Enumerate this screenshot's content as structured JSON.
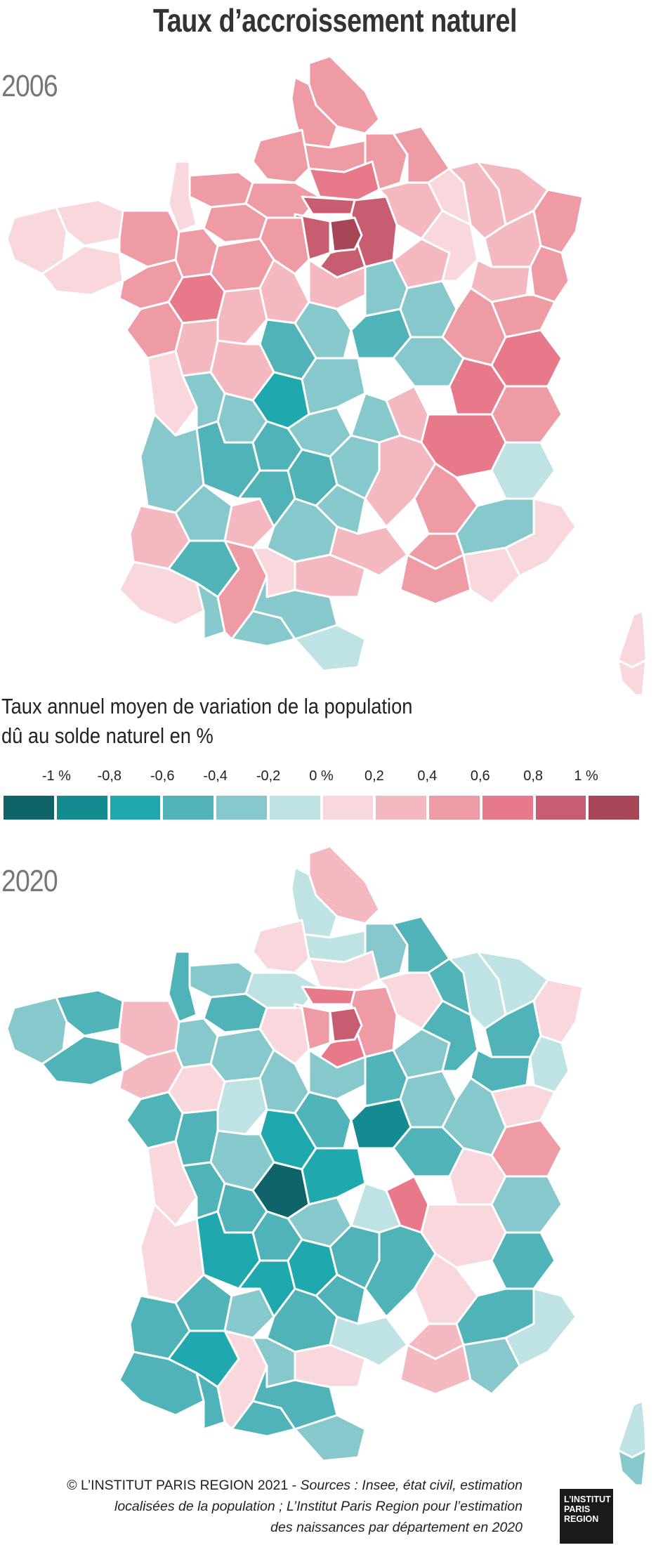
{
  "title": "Taux d’accroissement naturel",
  "maps": [
    {
      "year": "2006"
    },
    {
      "year": "2020"
    }
  ],
  "legend": {
    "title_line1": "Taux annuel moyen de variation de la population",
    "title_line2": "dû au solde naturel en %",
    "labels": [
      "-1 %",
      "-0,8",
      "-0,6",
      "-0,4",
      "-0,2",
      "0 %",
      "0,2",
      "0,4",
      "0,6",
      "0,8",
      "1 %"
    ],
    "colors": [
      "#0f6469",
      "#138b90",
      "#1fa8ae",
      "#4fb3b8",
      "#86c8cc",
      "#bfe2e4",
      "#f8d8dc",
      "#f4b9c0",
      "#ef9ba6",
      "#e8798a",
      "#c85d72",
      "#a74657"
    ]
  },
  "footer": {
    "line1_prefix": "© L’INSTITUT PARIS REGION 2021 -",
    "line1_sources": "Sources : Insee, état civil, estimation",
    "line2": "localisées de la population ; L’Institut Paris Region pour l’estimation",
    "line3": "des naissances par département en 2020"
  },
  "logo": {
    "line1": "L’INSTITUT",
    "line2": "PARIS",
    "line3": "REGION"
  }
}
